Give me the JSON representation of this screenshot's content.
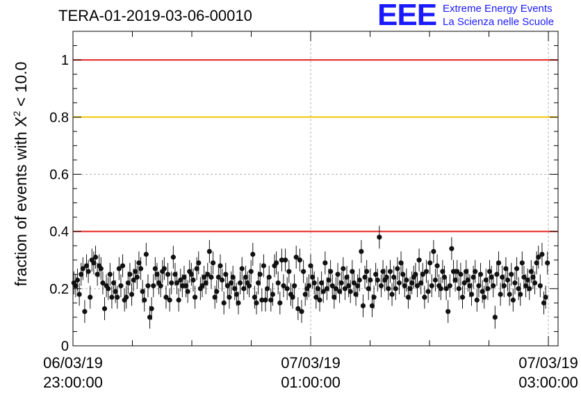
{
  "title": "TERA-01-2019-03-06-00010",
  "logo": {
    "mark": "EEE",
    "line1": "Extreme Energy Events",
    "line2": "La Scienza nelle Scuole",
    "color": "#1a1aff"
  },
  "chart_data": {
    "type": "scatter",
    "title": "TERA-01-2019-03-06-00010",
    "ylabel_prefix": "fraction of events with X",
    "ylabel_sup": "2",
    "ylabel_suffix": " < 10.0",
    "xlabel": "",
    "ylim": [
      0,
      1.1
    ],
    "xlim_hours": [
      0,
      4.0
    ],
    "yticks": [
      0,
      0.2,
      0.4,
      0.6,
      0.8,
      1
    ],
    "ytick_labels": [
      "0",
      "0.2",
      "0.4",
      "0.6",
      "0.8",
      "1"
    ],
    "xticks": [
      {
        "date": "06/03/19",
        "time": "23:00:00",
        "hour": 0
      },
      {
        "date": "07/03/19",
        "time": "01:00:00",
        "hour": 2
      },
      {
        "date": "07/03/19",
        "time": "03:00:00",
        "hour": 4
      }
    ],
    "grid": true,
    "reference_lines": [
      {
        "y": 1.0,
        "color": "#e8201c"
      },
      {
        "y": 0.8,
        "color": "#f5c400"
      },
      {
        "y": 0.4,
        "color": "#e8201c"
      }
    ],
    "series": [
      {
        "marker_color": "#111111",
        "y_error": 0.04,
        "values": [
          0.22,
          0.21,
          0.23,
          0.18,
          0.25,
          0.27,
          0.12,
          0.28,
          0.26,
          0.17,
          0.3,
          0.29,
          0.31,
          0.25,
          0.28,
          0.27,
          0.22,
          0.13,
          0.21,
          0.2,
          0.25,
          0.17,
          0.22,
          0.19,
          0.17,
          0.27,
          0.21,
          0.28,
          0.16,
          0.17,
          0.22,
          0.25,
          0.18,
          0.23,
          0.26,
          0.24,
          0.29,
          0.27,
          0.19,
          0.16,
          0.32,
          0.21,
          0.1,
          0.13,
          0.21,
          0.27,
          0.25,
          0.22,
          0.21,
          0.26,
          0.27,
          0.17,
          0.25,
          0.16,
          0.22,
          0.31,
          0.25,
          0.22,
          0.16,
          0.23,
          0.21,
          0.24,
          0.21,
          0.19,
          0.26,
          0.25,
          0.23,
          0.17,
          0.27,
          0.29,
          0.2,
          0.21,
          0.24,
          0.22,
          0.25,
          0.33,
          0.24,
          0.29,
          0.17,
          0.19,
          0.24,
          0.28,
          0.23,
          0.15,
          0.25,
          0.21,
          0.17,
          0.22,
          0.24,
          0.2,
          0.18,
          0.15,
          0.22,
          0.27,
          0.2,
          0.24,
          0.22,
          0.21,
          0.26,
          0.32,
          0.17,
          0.15,
          0.22,
          0.25,
          0.16,
          0.28,
          0.16,
          0.2,
          0.24,
          0.16,
          0.18,
          0.28,
          0.29,
          0.22,
          0.15,
          0.3,
          0.21,
          0.3,
          0.2,
          0.26,
          0.18,
          0.17,
          0.21,
          0.31,
          0.13,
          0.3,
          0.12,
          0.26,
          0.18,
          0.2,
          0.21,
          0.28,
          0.24,
          0.22,
          0.17,
          0.2,
          0.16,
          0.22,
          0.19,
          0.29,
          0.2,
          0.23,
          0.26,
          0.21,
          0.17,
          0.2,
          0.25,
          0.19,
          0.22,
          0.27,
          0.2,
          0.24,
          0.21,
          0.19,
          0.26,
          0.22,
          0.18,
          0.21,
          0.23,
          0.33,
          0.14,
          0.24,
          0.26,
          0.2,
          0.23,
          0.14,
          0.17,
          0.25,
          0.23,
          0.38,
          0.21,
          0.26,
          0.23,
          0.24,
          0.2,
          0.26,
          0.18,
          0.24,
          0.2,
          0.27,
          0.22,
          0.29,
          0.25,
          0.21,
          0.23,
          0.17,
          0.2,
          0.22,
          0.24,
          0.25,
          0.21,
          0.3,
          0.22,
          0.25,
          0.17,
          0.26,
          0.19,
          0.29,
          0.21,
          0.33,
          0.23,
          0.28,
          0.21,
          0.2,
          0.26,
          0.24,
          0.2,
          0.12,
          0.21,
          0.34,
          0.26,
          0.23,
          0.26,
          0.2,
          0.25,
          0.17,
          0.22,
          0.26,
          0.23,
          0.21,
          0.18,
          0.24,
          0.26,
          0.16,
          0.21,
          0.25,
          0.19,
          0.17,
          0.23,
          0.2,
          0.26,
          0.24,
          0.21,
          0.1,
          0.25,
          0.29,
          0.18,
          0.24,
          0.21,
          0.27,
          0.23,
          0.18,
          0.25,
          0.16,
          0.22,
          0.27,
          0.2,
          0.18,
          0.29,
          0.24,
          0.21,
          0.23,
          0.2,
          0.26,
          0.24,
          0.22,
          0.29,
          0.31,
          0.21,
          0.32,
          0.15,
          0.17,
          0.29
        ]
      }
    ]
  }
}
